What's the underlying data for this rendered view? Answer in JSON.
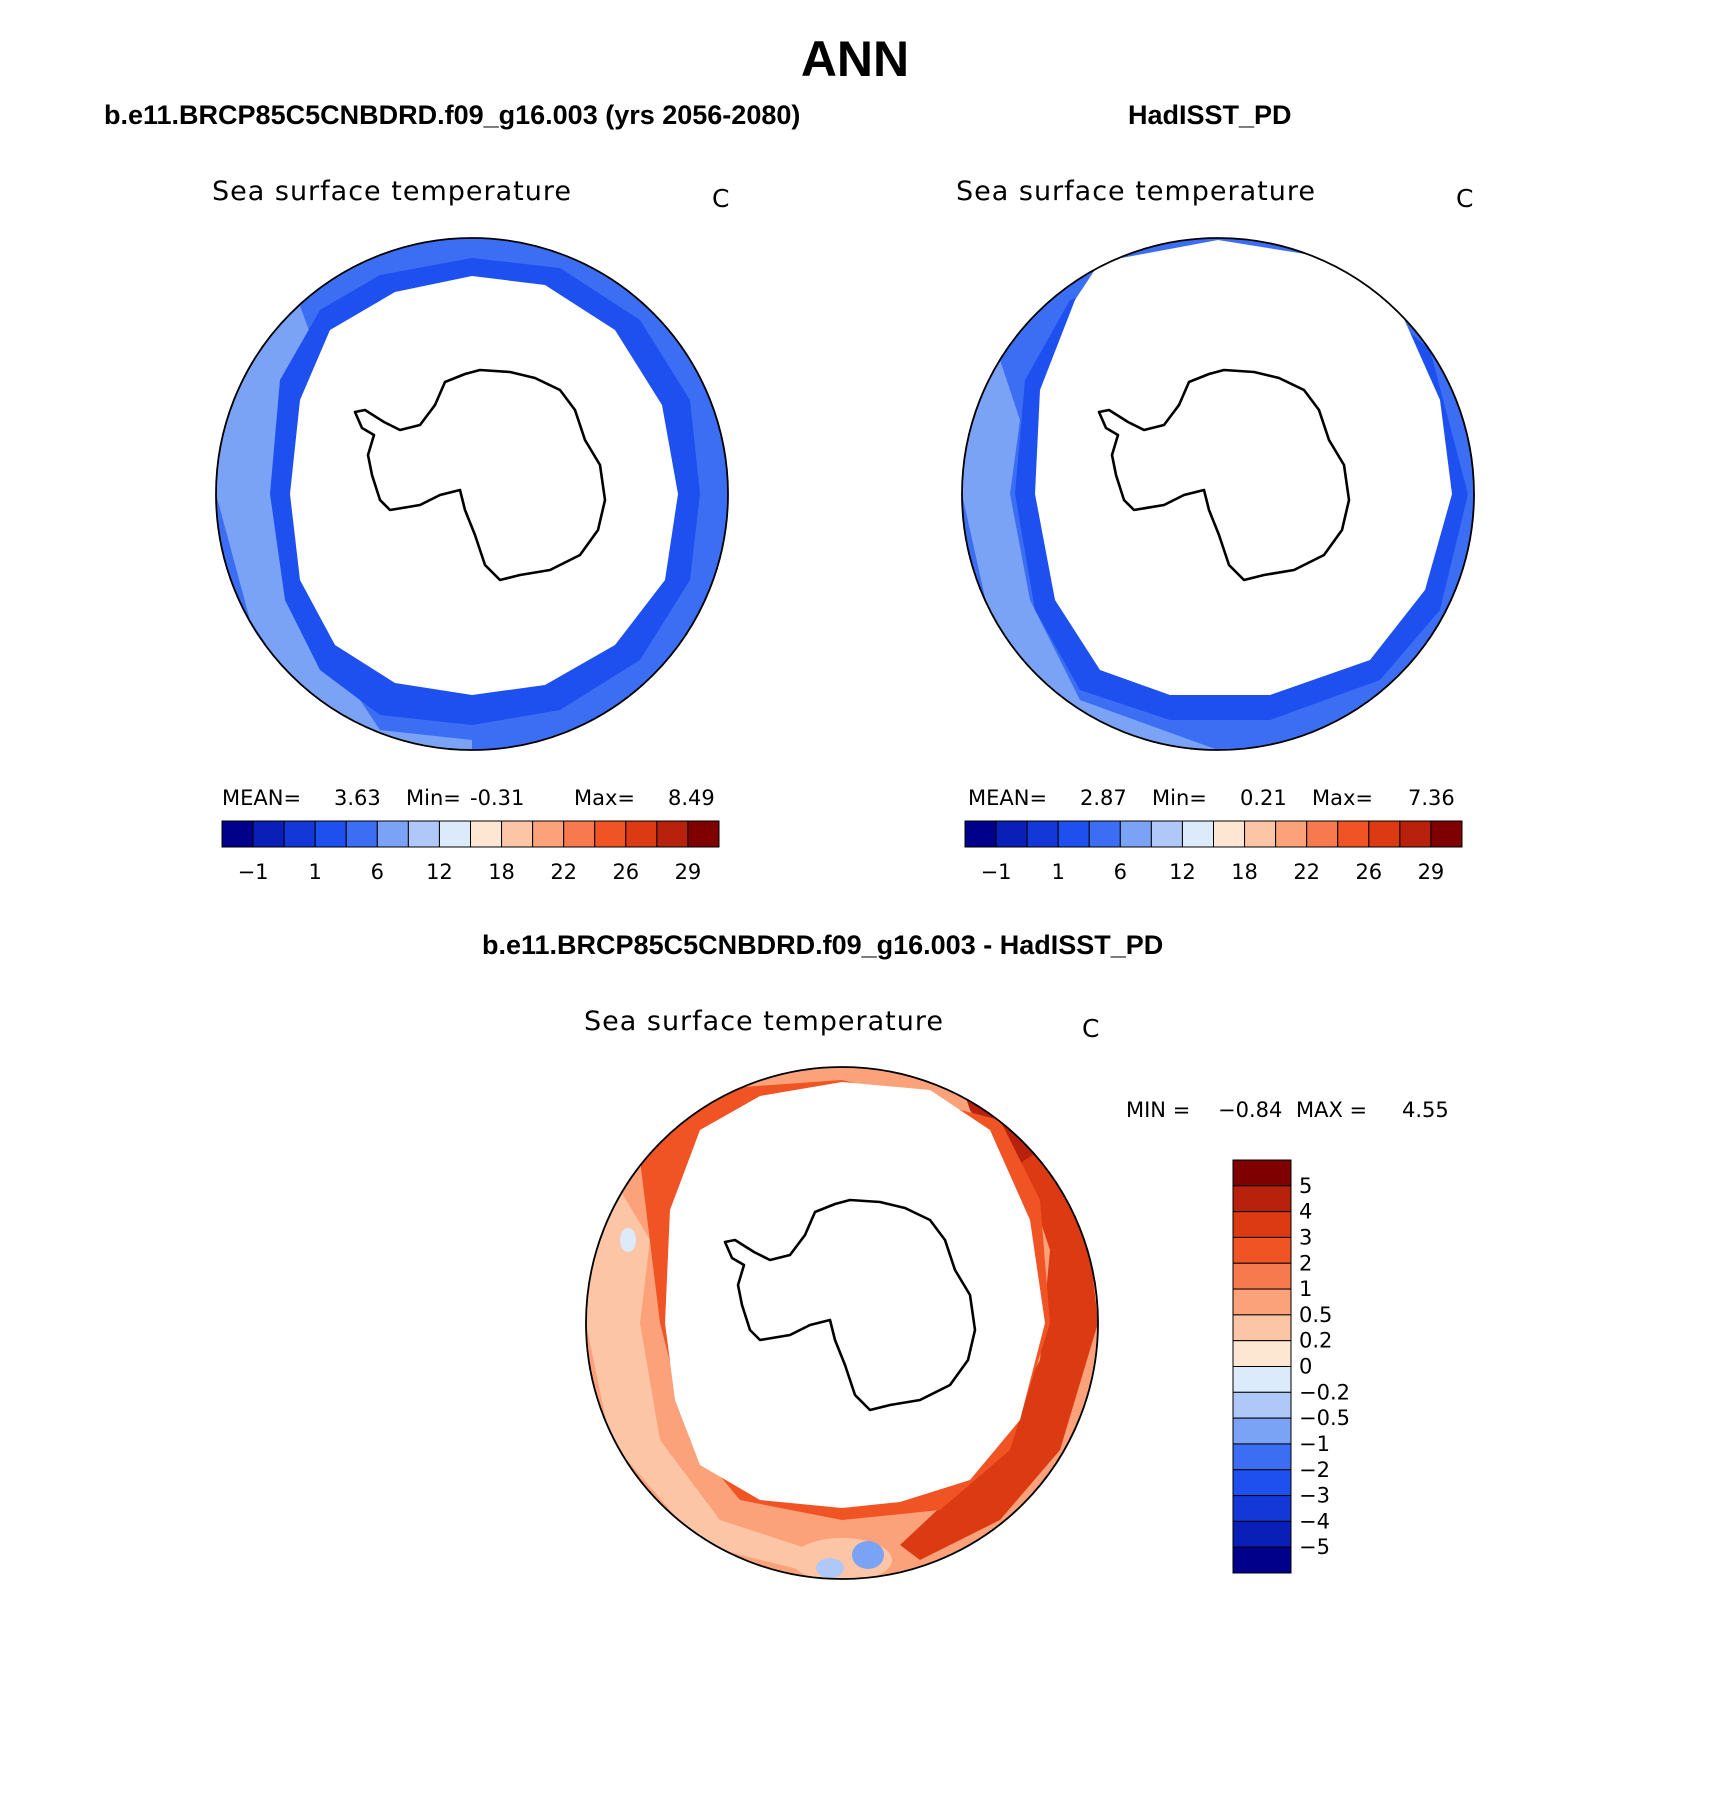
{
  "page": {
    "title": "ANN",
    "diff_heading": "b.e11.BRCP85C5CNBDRD.f09_g16.003 - HadISST_PD"
  },
  "panels": [
    {
      "heading": "b.e11.BRCP85C5CNBDRD.f09_g16.003 (yrs 2056-2080)",
      "plot_title": "Sea surface temperature",
      "units": "C",
      "mean_label": "MEAN=",
      "mean": "3.63",
      "min_label": "Min=",
      "min": "-0.31",
      "max_label": "Max=",
      "max": "8.49"
    },
    {
      "heading": "HadISST_PD",
      "plot_title": "Sea surface temperature",
      "units": "C",
      "mean_label": "MEAN=",
      "mean": "2.87",
      "min_label": "Min=",
      "min": "0.21",
      "max_label": "Max=",
      "max": "7.36"
    }
  ],
  "colorbar_main": {
    "colors": [
      "#00008B",
      "#0A1FB8",
      "#1438D8",
      "#1E50F0",
      "#3C6EF4",
      "#7AA2F5",
      "#AFC8F8",
      "#DCEBFA",
      "#FDE6D2",
      "#FCC6A6",
      "#FBA27A",
      "#F67A4E",
      "#F05424",
      "#DC3A12",
      "#B8220C",
      "#7F0000"
    ],
    "ticks": [
      "−1",
      "1",
      "6",
      "12",
      "18",
      "22",
      "26",
      "29"
    ]
  },
  "diff_panel": {
    "plot_title": "Sea surface temperature",
    "units": "C",
    "min_label": "MIN =",
    "min": "−0.84",
    "max_label": "MAX =",
    "max": "4.55",
    "colorbar": {
      "colors": [
        "#7F0000",
        "#B8220C",
        "#DC3A12",
        "#F05424",
        "#F67A4E",
        "#FBA27A",
        "#FCC6A6",
        "#FDE6D2",
        "#DCEBFA",
        "#AFC8F8",
        "#7AA2F5",
        "#3C6EF4",
        "#1E50F0",
        "#1438D8",
        "#0A1FB8",
        "#00008B"
      ],
      "ticks": [
        "5",
        "4",
        "3",
        "2",
        "1",
        "0.5",
        "0.2",
        "0",
        "−0.2",
        "−0.5",
        "−1",
        "−2",
        "−3",
        "−4",
        "−5"
      ]
    }
  },
  "fills": {
    "ring_light": "#7AA2F5",
    "ring_mid": "#3C6EF4",
    "ring_dark": "#1E50F0",
    "diff_light": "#FCC6A6",
    "diff_mid": "#FBA27A",
    "diff_dark": "#F05424",
    "diff_darker": "#DC3A12",
    "diff_darkest": "#B8220C"
  }
}
